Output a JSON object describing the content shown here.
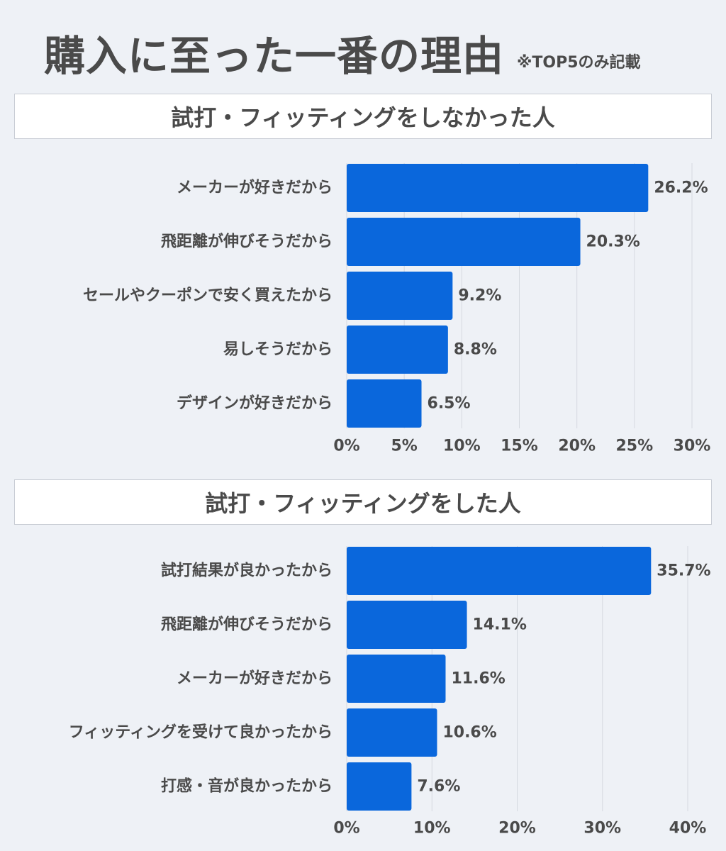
{
  "title": "購入に至った一番の理由",
  "note": "※TOP5のみ記載",
  "colors": {
    "bar": "#0a67dc",
    "grid": "#d5d9e0",
    "text": "#4a4a4a",
    "background": "#eef1f6"
  },
  "chart_data": [
    {
      "type": "bar",
      "orientation": "horizontal",
      "title": "試打・フィッティングをしなかった人",
      "categories": [
        "メーカーが好きだから",
        "飛距離が伸びそうだから",
        "セールやクーポンで安く買えたから",
        "易しそうだから",
        "デザインが好きだから"
      ],
      "values": [
        26.2,
        20.3,
        9.2,
        8.8,
        6.5
      ],
      "value_labels": [
        "26.2%",
        "20.3%",
        "9.2%",
        "8.8%",
        "6.5%"
      ],
      "xlim": [
        0,
        30
      ],
      "ticks": [
        0,
        5,
        10,
        15,
        20,
        25,
        30
      ],
      "tick_labels": [
        "0%",
        "5%",
        "10%",
        "15%",
        "20%",
        "25%",
        "30%"
      ],
      "grid": true
    },
    {
      "type": "bar",
      "orientation": "horizontal",
      "title": "試打・フィッティングをした人",
      "categories": [
        "試打結果が良かったから",
        "飛距離が伸びそうだから",
        "メーカーが好きだから",
        "フィッティングを受けて良かったから",
        "打感・音が良かったから"
      ],
      "values": [
        35.7,
        14.1,
        11.6,
        10.6,
        7.6
      ],
      "value_labels": [
        "35.7%",
        "14.1%",
        "11.6%",
        "10.6%",
        "7.6%"
      ],
      "xlim": [
        0,
        40
      ],
      "ticks": [
        0,
        10,
        20,
        30,
        40
      ],
      "tick_labels": [
        "0%",
        "10%",
        "20%",
        "30%",
        "40%"
      ],
      "grid": true
    }
  ]
}
